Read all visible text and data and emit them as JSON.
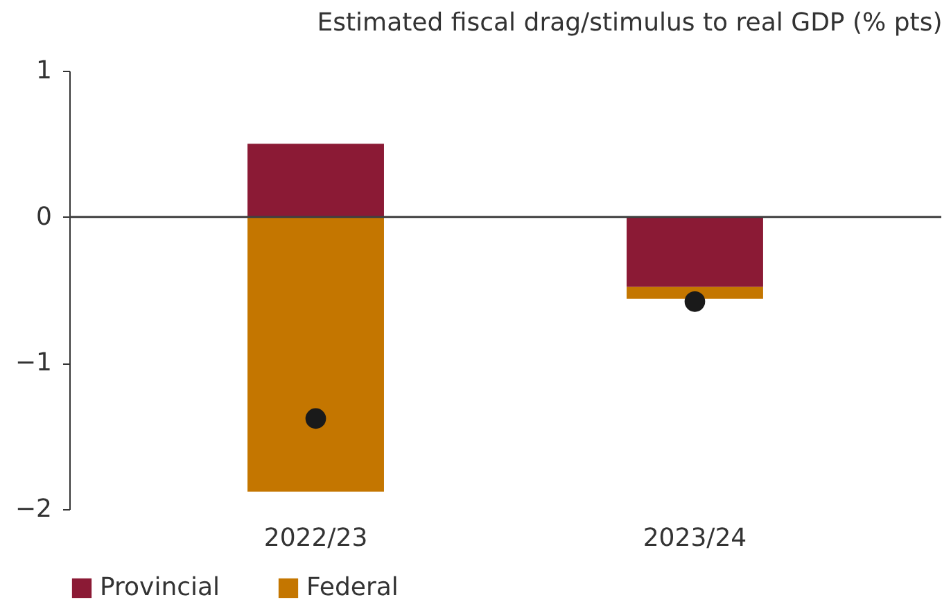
{
  "chart_data": {
    "type": "bar",
    "title": "Estimated fiscal drag/stimulus to real GDP (% pts)",
    "categories": [
      "2022/23",
      "2023/24"
    ],
    "stacked": true,
    "series": [
      {
        "name": "Provincial",
        "color": "#8b1a35",
        "values": [
          0.5,
          -0.48
        ]
      },
      {
        "name": "Federal",
        "color": "#c47600",
        "values": [
          -1.88,
          -0.08
        ]
      },
      {
        "type": "scatter",
        "color": "#1a1a1a",
        "x": [
          "2022/23",
          "2023/24"
        ],
        "values": [
          -1.38,
          -0.58
        ]
      }
    ],
    "ylim": [
      -2,
      1
    ],
    "yticks": [
      -2,
      -1,
      0,
      1
    ],
    "grid": false,
    "legend": "bottom",
    "marker": "circle",
    "ref_lines": [
      {
        "axis": "y",
        "value": 0,
        "color": "#404040"
      }
    ]
  }
}
